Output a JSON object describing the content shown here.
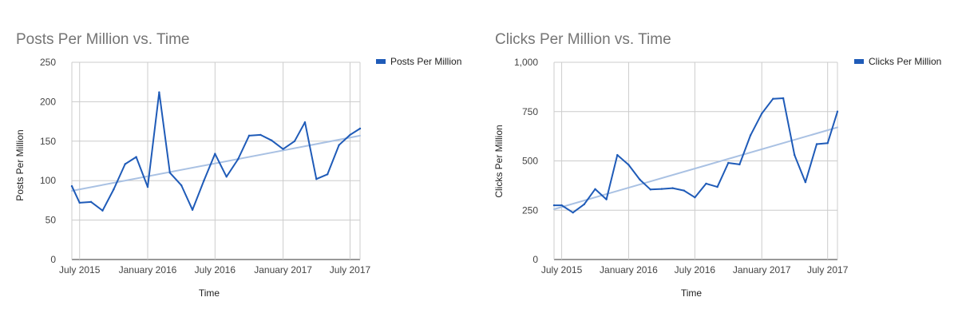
{
  "chart_data": [
    {
      "type": "line",
      "title": "Posts Per Million vs. Time",
      "xlabel": "Time",
      "ylabel": "Posts Per Million",
      "ylim": [
        0,
        250
      ],
      "yticks": [
        "0",
        "50",
        "100",
        "150",
        "200",
        "250"
      ],
      "xlim": [
        "2015-06-10",
        "2017-07-28"
      ],
      "xticks": [
        {
          "date": "2015-07-01",
          "label": "July 2015"
        },
        {
          "date": "2016-01-01",
          "label": "January 2016"
        },
        {
          "date": "2016-07-01",
          "label": "July 2016"
        },
        {
          "date": "2017-01-01",
          "label": "January 2017"
        },
        {
          "date": "2017-07-01",
          "label": "July 2017"
        }
      ],
      "grid": true,
      "legend_position": "right",
      "series": [
        {
          "name": "Posts Per Million",
          "color": "#1f5bb8",
          "x": [
            "2015-06-10",
            "2015-07-01",
            "2015-08-01",
            "2015-09-01",
            "2015-10-01",
            "2015-11-01",
            "2015-12-01",
            "2016-01-01",
            "2016-02-01",
            "2016-03-01",
            "2016-04-01",
            "2016-05-01",
            "2016-06-01",
            "2016-07-01",
            "2016-08-01",
            "2016-09-01",
            "2016-10-01",
            "2016-11-01",
            "2016-12-01",
            "2017-01-01",
            "2017-02-01",
            "2017-03-01",
            "2017-04-01",
            "2017-05-01",
            "2017-06-01",
            "2017-07-01",
            "2017-07-28"
          ],
          "values": [
            93,
            72,
            73,
            62,
            89,
            121,
            130,
            92,
            212,
            110,
            94,
            63,
            100,
            134,
            105,
            127,
            157,
            158,
            151,
            140,
            150,
            174,
            102,
            108,
            145,
            158,
            166
          ]
        },
        {
          "role": "trendline",
          "color": "#a9c1e3",
          "x": [
            "2015-06-10",
            "2017-07-28"
          ],
          "values": [
            87,
            157
          ]
        }
      ]
    },
    {
      "type": "line",
      "title": "Clicks Per Million vs. Time",
      "xlabel": "Time",
      "ylabel": "Clicks Per Million",
      "ylim": [
        0,
        1000
      ],
      "yticks": [
        "0",
        "250",
        "500",
        "750",
        "1,000"
      ],
      "xlim": [
        "2015-06-10",
        "2017-07-28"
      ],
      "xticks": [
        {
          "date": "2015-07-01",
          "label": "July 2015"
        },
        {
          "date": "2016-01-01",
          "label": "January 2016"
        },
        {
          "date": "2016-07-01",
          "label": "July 2016"
        },
        {
          "date": "2017-01-01",
          "label": "January 2017"
        },
        {
          "date": "2017-07-01",
          "label": "July 2017"
        }
      ],
      "grid": true,
      "legend_position": "right",
      "series": [
        {
          "name": "Clicks Per Million",
          "color": "#1f5bb8",
          "x": [
            "2015-06-10",
            "2015-07-01",
            "2015-08-01",
            "2015-09-01",
            "2015-10-01",
            "2015-11-01",
            "2015-12-01",
            "2016-01-01",
            "2016-02-01",
            "2016-03-01",
            "2016-04-01",
            "2016-05-01",
            "2016-06-01",
            "2016-07-01",
            "2016-08-01",
            "2016-09-01",
            "2016-10-01",
            "2016-11-01",
            "2016-12-01",
            "2017-01-01",
            "2017-02-01",
            "2017-03-01",
            "2017-04-01",
            "2017-05-01",
            "2017-06-01",
            "2017-07-01",
            "2017-07-28"
          ],
          "values": [
            275,
            275,
            238,
            280,
            357,
            305,
            530,
            480,
            405,
            355,
            358,
            362,
            350,
            315,
            385,
            368,
            490,
            482,
            630,
            740,
            815,
            818,
            530,
            392,
            585,
            590,
            750
          ]
        },
        {
          "role": "trendline",
          "color": "#a9c1e3",
          "x": [
            "2015-06-10",
            "2017-07-28"
          ],
          "values": [
            255,
            670
          ]
        }
      ]
    }
  ]
}
